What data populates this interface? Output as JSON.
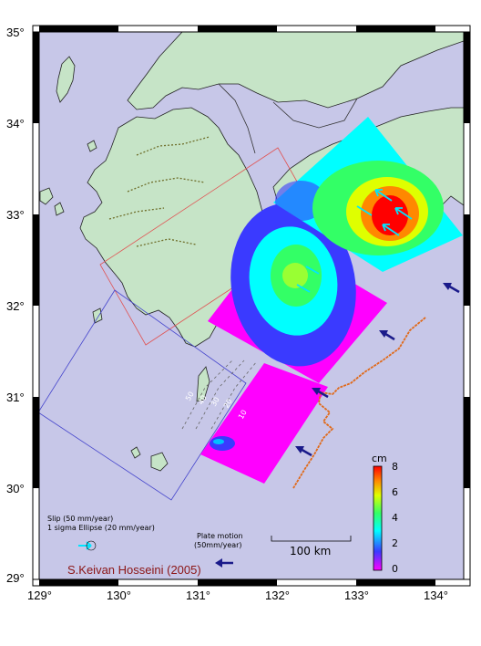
{
  "colors": {
    "sea": "#c7c7e8",
    "land": "#c6e4c7",
    "coast": "#222222",
    "plate_arrow": "#1a1a8a",
    "trench": "#e06a1a",
    "author": "#8b1414"
  },
  "axes": {
    "x_ticks": [
      "129°",
      "130°",
      "131°",
      "132°",
      "133°",
      "134°"
    ],
    "y_ticks": [
      "35°",
      "34°",
      "33°",
      "32°",
      "31°",
      "30°",
      "29°"
    ]
  },
  "legend": {
    "slip_label": "Slip (50 mm/year)",
    "ellipse_label": "1 sigma Ellipse  (20 mm/year)",
    "plate_motion_label": "Plate motion",
    "plate_motion_rate": "(50mm/year)",
    "scale_label": "100 km"
  },
  "colorbar": {
    "unit": "cm",
    "ticks": [
      "8",
      "6",
      "4",
      "2",
      "0"
    ]
  },
  "depth_labels": [
    "50",
    "40",
    "30",
    "20",
    "10"
  ],
  "author": "S.Keivan Hosseini (2005)"
}
